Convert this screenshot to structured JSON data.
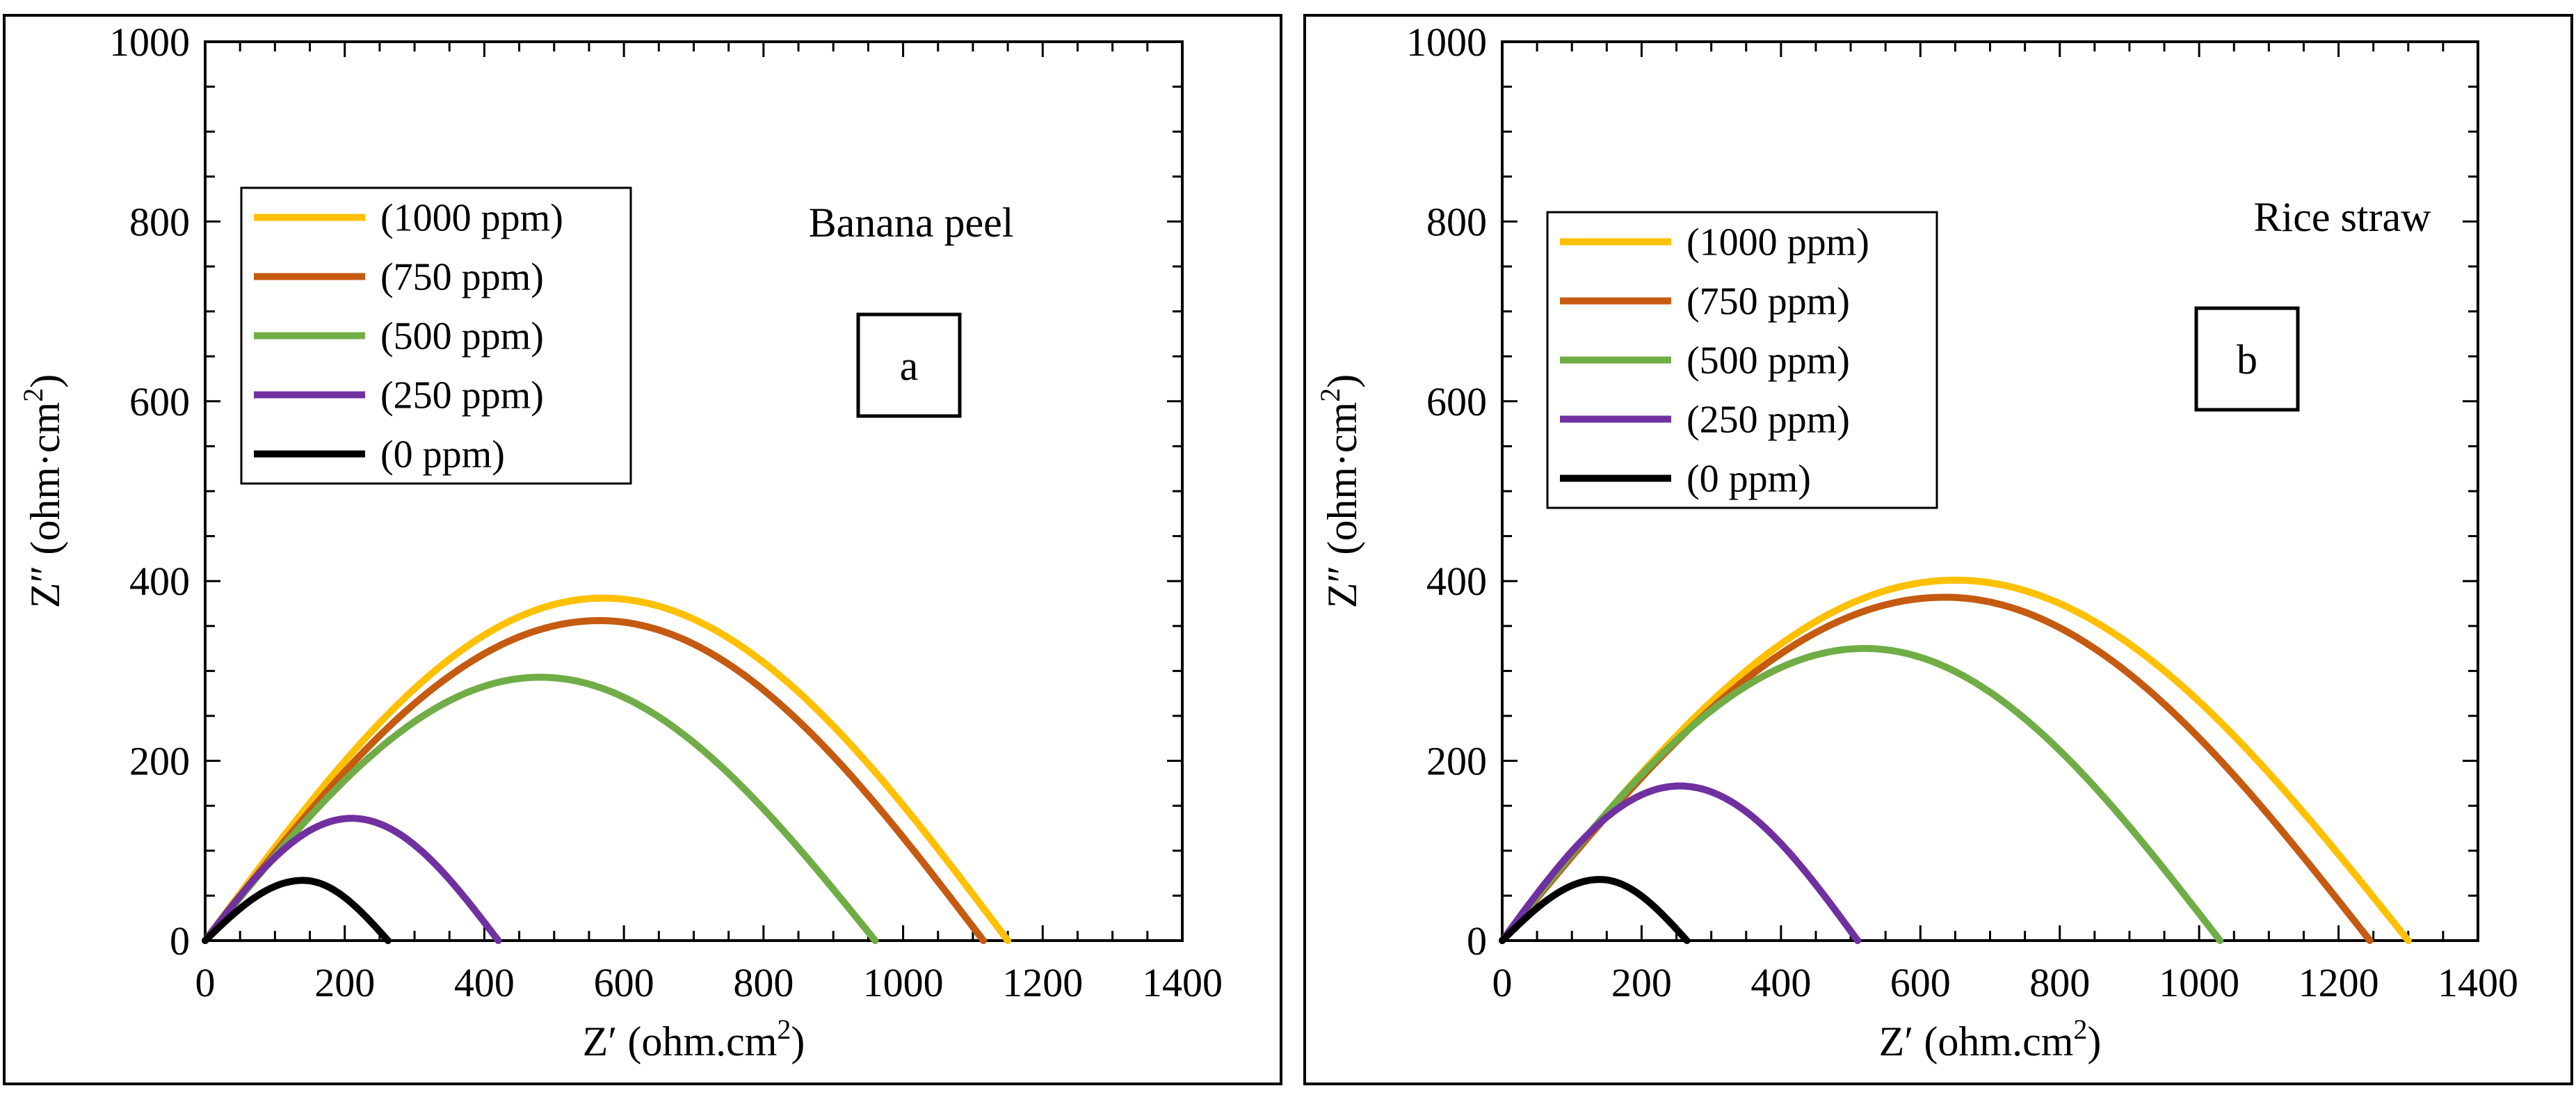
{
  "chart_data": [
    {
      "type": "line",
      "subtitle": "Banana peel",
      "panel_label": "a",
      "xlabel": "Z′ (ohm.cm²)",
      "ylabel": "Z″ (ohm·cm²)",
      "xlim": [
        0,
        1400
      ],
      "ylim": [
        0,
        1000
      ],
      "xticks": [
        0,
        200,
        400,
        600,
        800,
        1000,
        1200,
        1400
      ],
      "yticks": [
        0,
        200,
        400,
        600,
        800,
        1000
      ],
      "legend_position": "top-left",
      "series": [
        {
          "name": "(1000 ppm)",
          "color": "#FFC000",
          "diameter": 1150,
          "peak": 381,
          "peak_x": 570
        },
        {
          "name": "(750 ppm)",
          "color": "#C55A11",
          "diameter": 1115,
          "peak": 356,
          "peak_x": 565
        },
        {
          "name": "(500 ppm)",
          "color": "#70AD47",
          "diameter": 960,
          "peak": 293,
          "peak_x": 480
        },
        {
          "name": "(250 ppm)",
          "color": "#7030A0",
          "diameter": 420,
          "peak": 136,
          "peak_x": 210
        },
        {
          "name": "(0 ppm)",
          "color": "#000000",
          "diameter": 262,
          "peak": 67,
          "peak_x": 140
        }
      ]
    },
    {
      "type": "line",
      "subtitle": "Rice straw",
      "panel_label": "b",
      "xlabel": "Z′ (ohm.cm²)",
      "ylabel": "Z″ (ohm·cm²)",
      "xlim": [
        0,
        1400
      ],
      "ylim": [
        0,
        1000
      ],
      "xticks": [
        0,
        200,
        400,
        600,
        800,
        1000,
        1200,
        1400
      ],
      "yticks": [
        0,
        200,
        400,
        600,
        800,
        1000
      ],
      "legend_position": "top-left",
      "series": [
        {
          "name": "(1000 ppm)",
          "color": "#FFC000",
          "diameter": 1300,
          "peak": 401,
          "peak_x": 650
        },
        {
          "name": "(750 ppm)",
          "color": "#C55A11",
          "diameter": 1245,
          "peak": 382,
          "peak_x": 635
        },
        {
          "name": "(500 ppm)",
          "color": "#70AD47",
          "diameter": 1030,
          "peak": 325,
          "peak_x": 520
        },
        {
          "name": "(250 ppm)",
          "color": "#7030A0",
          "diameter": 510,
          "peak": 172,
          "peak_x": 255
        },
        {
          "name": "(0 ppm)",
          "color": "#000000",
          "diameter": 265,
          "peak": 68,
          "peak_x": 140
        }
      ]
    }
  ]
}
